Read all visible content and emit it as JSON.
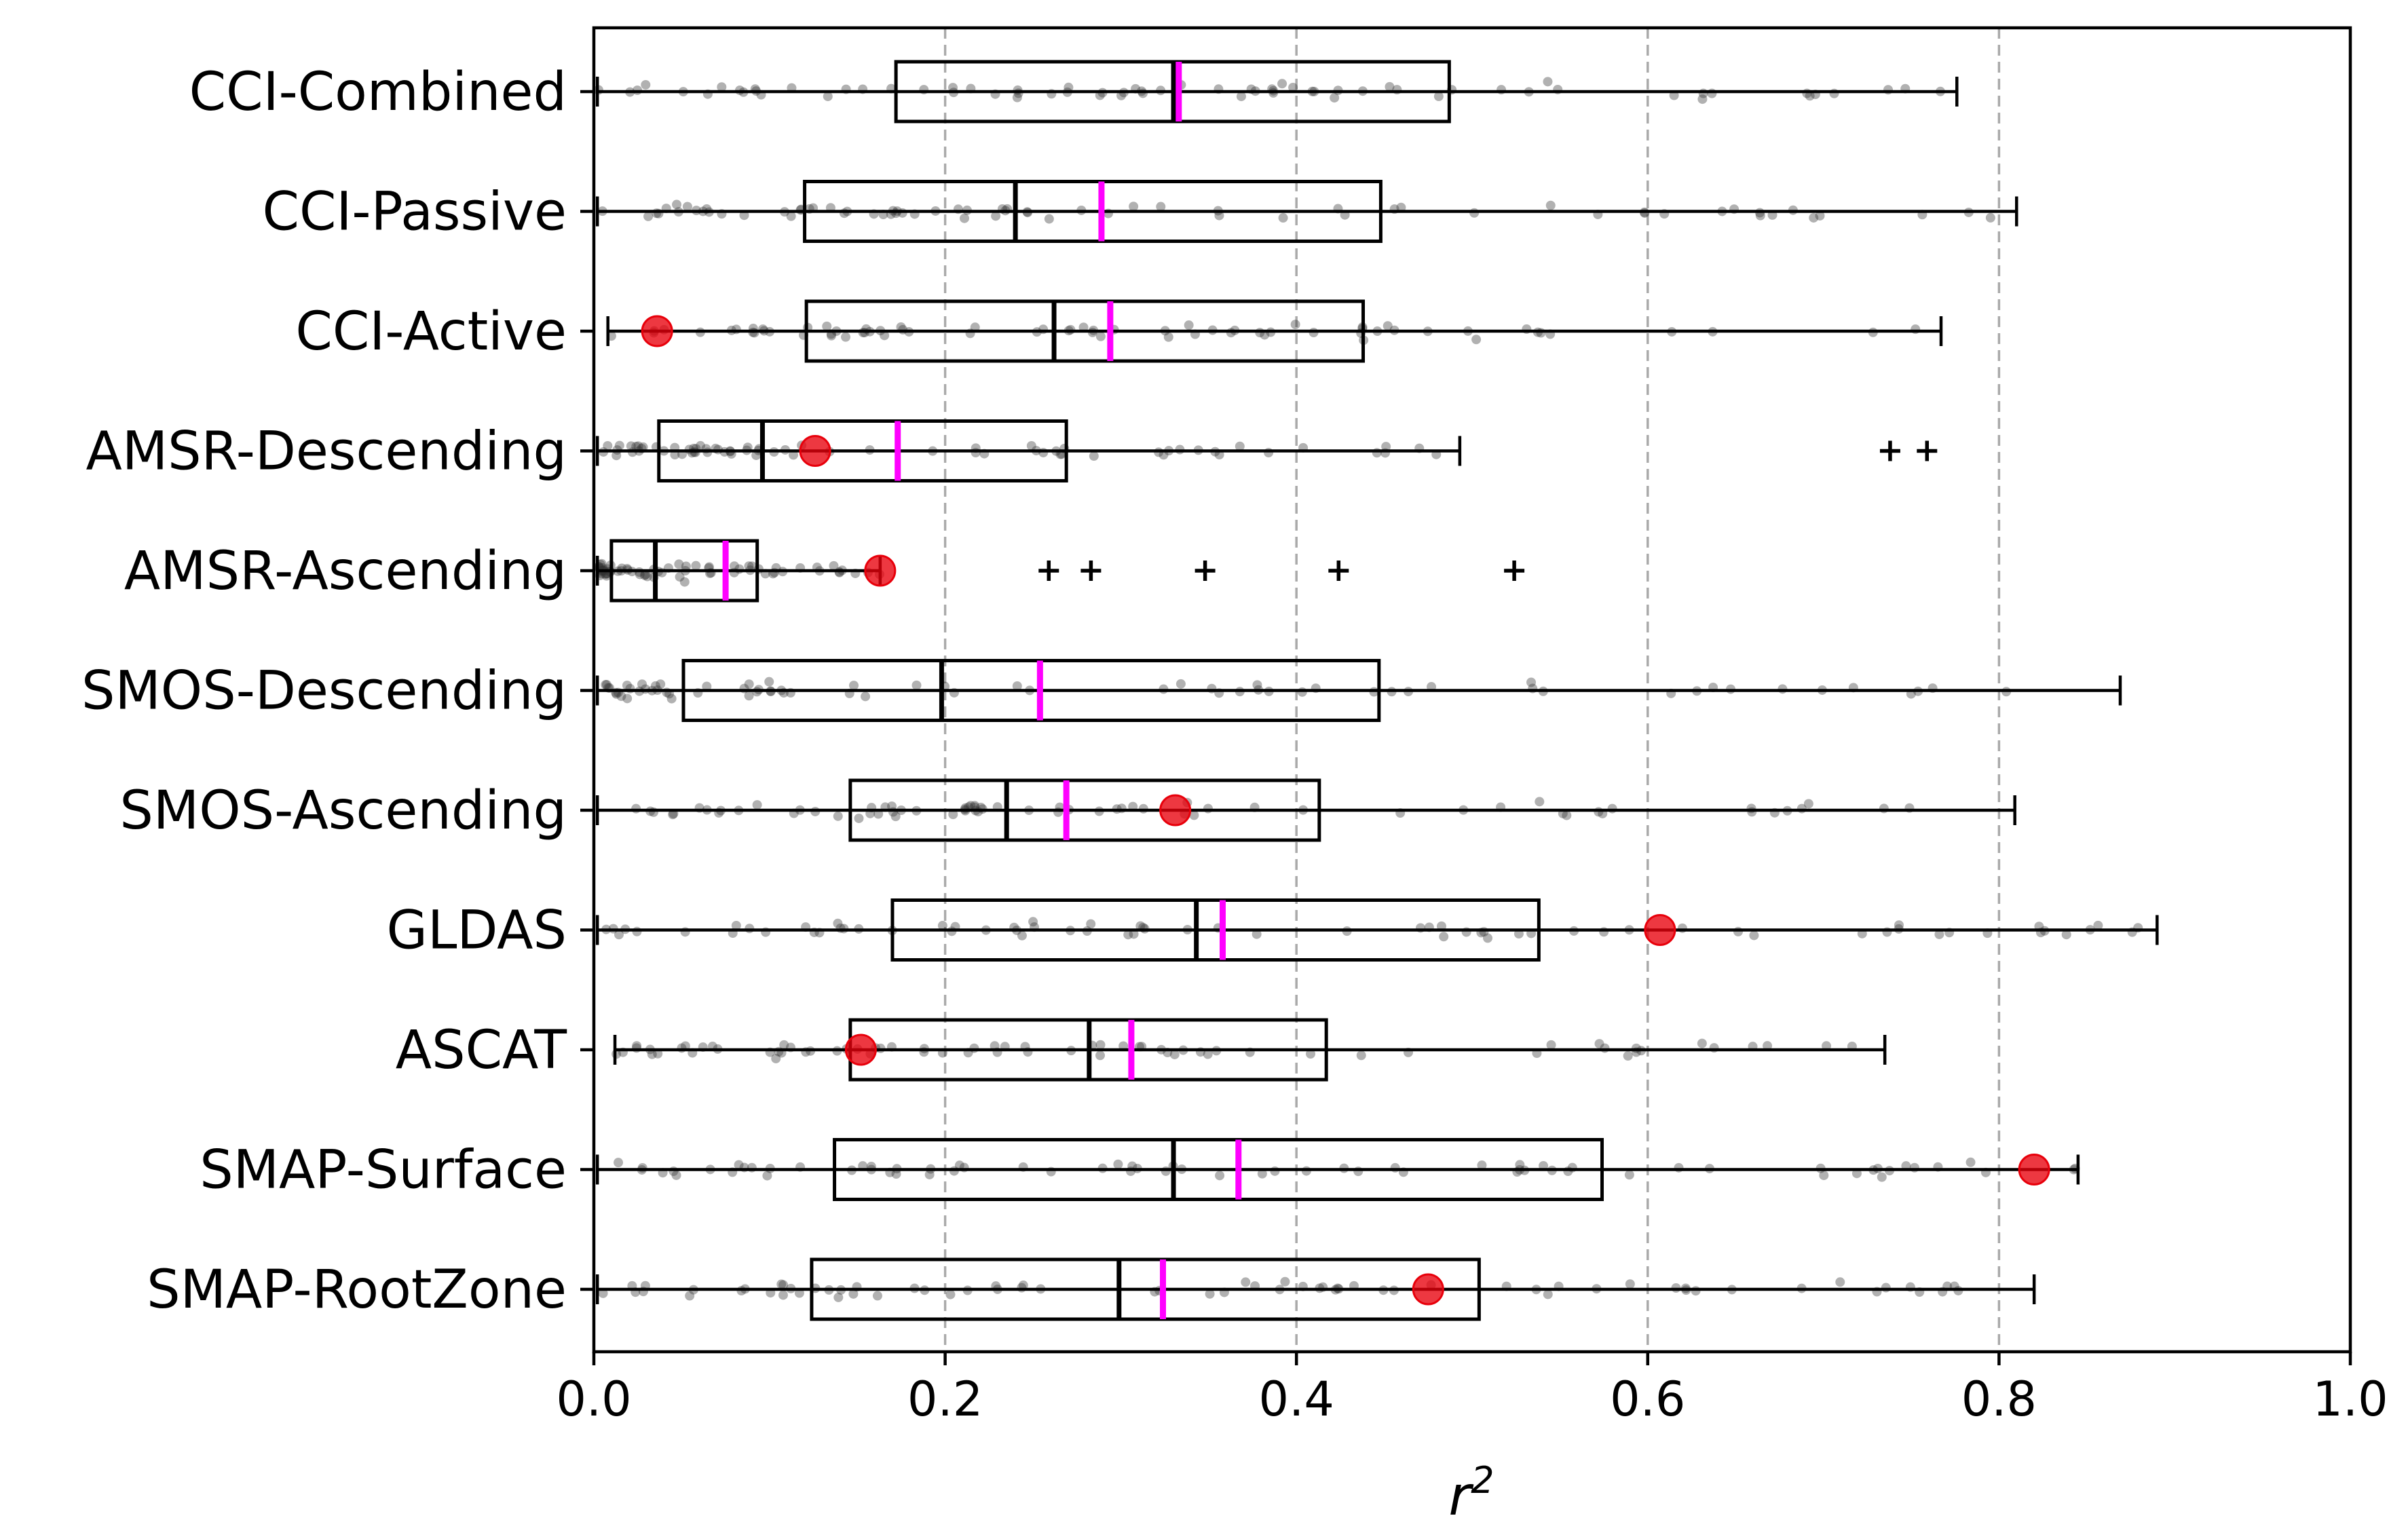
{
  "chart_data": {
    "type": "boxplot-horizontal",
    "title": "",
    "xlabel": "r",
    "xlabel_superscript": "2",
    "ylabel": "",
    "xlim": [
      0.0,
      1.0
    ],
    "x_ticks": [
      0.0,
      0.2,
      0.4,
      0.6,
      0.8,
      1.0
    ],
    "x_tick_labels": [
      "0.0",
      "0.2",
      "0.4",
      "0.6",
      "0.8",
      "1.0"
    ],
    "vertical_gridlines_at": [
      0.2,
      0.4,
      0.6,
      0.8
    ],
    "colors": {
      "box_edge": "#000000",
      "median": "#000000",
      "mean": "#ff00ff",
      "reference_marker": "#e8000b",
      "points": "#333333",
      "grid": "#aaaaaa"
    },
    "categories": [
      "CCI-Combined",
      "CCI-Passive",
      "CCI-Active",
      "AMSR-Descending",
      "AMSR-Ascending",
      "SMOS-Descending",
      "SMOS-Ascending",
      "GLDAS",
      "ASCAT",
      "SMAP-Surface",
      "SMAP-RootZone"
    ],
    "series": [
      {
        "name": "CCI-Combined",
        "whisker_low": 0.002,
        "q1": 0.172,
        "median": 0.33,
        "q3": 0.487,
        "whisker_high": 0.776,
        "mean": 0.333,
        "reference": null,
        "outliers": []
      },
      {
        "name": "CCI-Passive",
        "whisker_low": 0.002,
        "q1": 0.12,
        "median": 0.24,
        "q3": 0.448,
        "whisker_high": 0.81,
        "mean": 0.289,
        "reference": null,
        "outliers": []
      },
      {
        "name": "CCI-Active",
        "whisker_low": 0.008,
        "q1": 0.121,
        "median": 0.262,
        "q3": 0.438,
        "whisker_high": 0.767,
        "mean": 0.294,
        "reference": 0.036,
        "outliers": []
      },
      {
        "name": "AMSR-Descending",
        "whisker_low": 0.002,
        "q1": 0.037,
        "median": 0.096,
        "q3": 0.269,
        "whisker_high": 0.493,
        "mean": 0.173,
        "reference": 0.126,
        "outliers": [
          0.738,
          0.759
        ]
      },
      {
        "name": "AMSR-Ascending",
        "whisker_low": 0.002,
        "q1": 0.01,
        "median": 0.035,
        "q3": 0.093,
        "whisker_high": 0.163,
        "mean": 0.075,
        "reference": 0.163,
        "outliers": [
          0.259,
          0.283,
          0.348,
          0.424,
          0.524
        ]
      },
      {
        "name": "SMOS-Descending",
        "whisker_low": 0.002,
        "q1": 0.051,
        "median": 0.198,
        "q3": 0.447,
        "whisker_high": 0.869,
        "mean": 0.254,
        "reference": null,
        "outliers": []
      },
      {
        "name": "SMOS-Ascending",
        "whisker_low": 0.002,
        "q1": 0.146,
        "median": 0.235,
        "q3": 0.413,
        "whisker_high": 0.809,
        "mean": 0.269,
        "reference": 0.331,
        "outliers": []
      },
      {
        "name": "GLDAS",
        "whisker_low": 0.002,
        "q1": 0.17,
        "median": 0.343,
        "q3": 0.538,
        "whisker_high": 0.89,
        "mean": 0.358,
        "reference": 0.607,
        "outliers": []
      },
      {
        "name": "ASCAT",
        "whisker_low": 0.012,
        "q1": 0.146,
        "median": 0.282,
        "q3": 0.417,
        "whisker_high": 0.735,
        "mean": 0.306,
        "reference": 0.152,
        "outliers": []
      },
      {
        "name": "SMAP-Surface",
        "whisker_low": 0.002,
        "q1": 0.137,
        "median": 0.33,
        "q3": 0.574,
        "whisker_high": 0.845,
        "mean": 0.367,
        "reference": 0.82,
        "outliers": []
      },
      {
        "name": "SMAP-RootZone",
        "whisker_low": 0.002,
        "q1": 0.124,
        "median": 0.299,
        "q3": 0.504,
        "whisker_high": 0.82,
        "mean": 0.324,
        "reference": 0.475,
        "outliers": []
      }
    ]
  }
}
